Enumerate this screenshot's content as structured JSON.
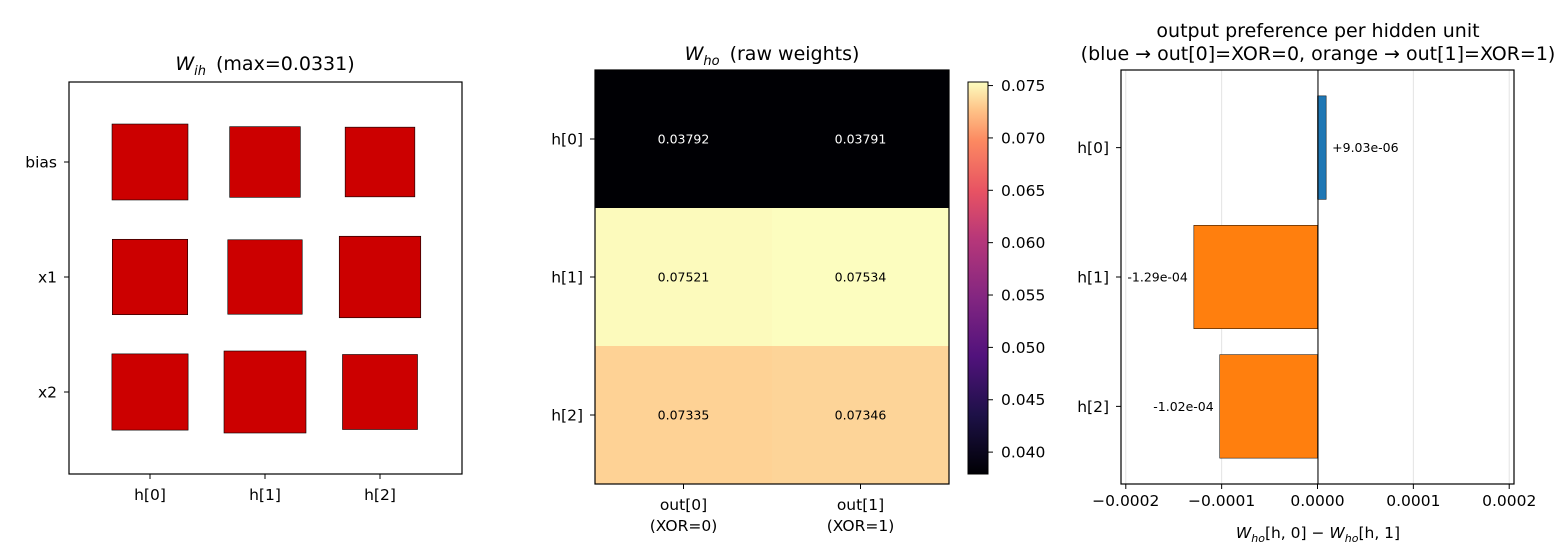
{
  "chart_data": [
    {
      "type": "hinton",
      "title_symbol": "W",
      "title_subscript": "ih",
      "title_suffix": "(max=0.0331)",
      "row_labels": [
        "bias",
        "x1",
        "x2"
      ],
      "col_labels": [
        "h[0]",
        "h[1]",
        "h[2]"
      ],
      "max_abs": 0.0331,
      "values": [
        [
          0.0284,
          0.0246,
          0.0239
        ],
        [
          0.028,
          0.0273,
          0.0327
        ],
        [
          0.0286,
          0.0331,
          0.0277
        ]
      ],
      "colors": {
        "positive": "#cc0000"
      }
    },
    {
      "type": "heatmap",
      "title_symbol": "W",
      "title_subscript": "ho",
      "title_suffix": "(raw weights)",
      "row_labels": [
        "h[0]",
        "h[1]",
        "h[2]"
      ],
      "col_labels": [
        [
          "out[0]",
          "(XOR=0)"
        ],
        [
          "out[1]",
          "(XOR=1)"
        ]
      ],
      "values": [
        [
          0.03792,
          0.03791
        ],
        [
          0.07521,
          0.07534
        ],
        [
          0.07335,
          0.07346
        ]
      ],
      "cell_labels": [
        [
          "0.03792",
          "0.03791"
        ],
        [
          "0.07521",
          "0.07534"
        ],
        [
          "0.07335",
          "0.07346"
        ]
      ],
      "colormap": "magma",
      "colorbar_range": [
        0.03791,
        0.07534
      ],
      "colorbar_ticks": [
        "0.040",
        "0.045",
        "0.050",
        "0.055",
        "0.060",
        "0.065",
        "0.070",
        "0.075"
      ],
      "colorbar_tick_values": [
        0.04,
        0.045,
        0.05,
        0.055,
        0.06,
        0.065,
        0.07,
        0.075
      ]
    },
    {
      "type": "bar",
      "orientation": "horizontal",
      "title_lines": [
        "output preference per hidden unit",
        "(blue → out[0]=XOR=0, orange → out[1]=XOR=1)"
      ],
      "categories": [
        "h[0]",
        "h[1]",
        "h[2]"
      ],
      "values": [
        9.03e-06,
        -0.000129,
        -0.000102
      ],
      "value_labels": [
        "+9.03e-06",
        "-1.29e-04",
        "-1.02e-04"
      ],
      "bar_colors": [
        "#1f77b4",
        "#ff7f0e",
        "#ff7f0e"
      ],
      "xlim": [
        -0.000205,
        0.000205
      ],
      "x_ticks": [
        "−0.0002",
        "−0.0001",
        "0.0000",
        "0.0001",
        "0.0002"
      ],
      "x_tick_values": [
        -0.0002,
        -0.0001,
        0,
        0.0001,
        0.0002
      ],
      "xlabel_symbol": "W",
      "xlabel_subscript": "ho",
      "xlabel_parts": [
        "[h, 0] − ",
        "[h, 1]"
      ],
      "grid": "x",
      "zero_line": true
    }
  ]
}
